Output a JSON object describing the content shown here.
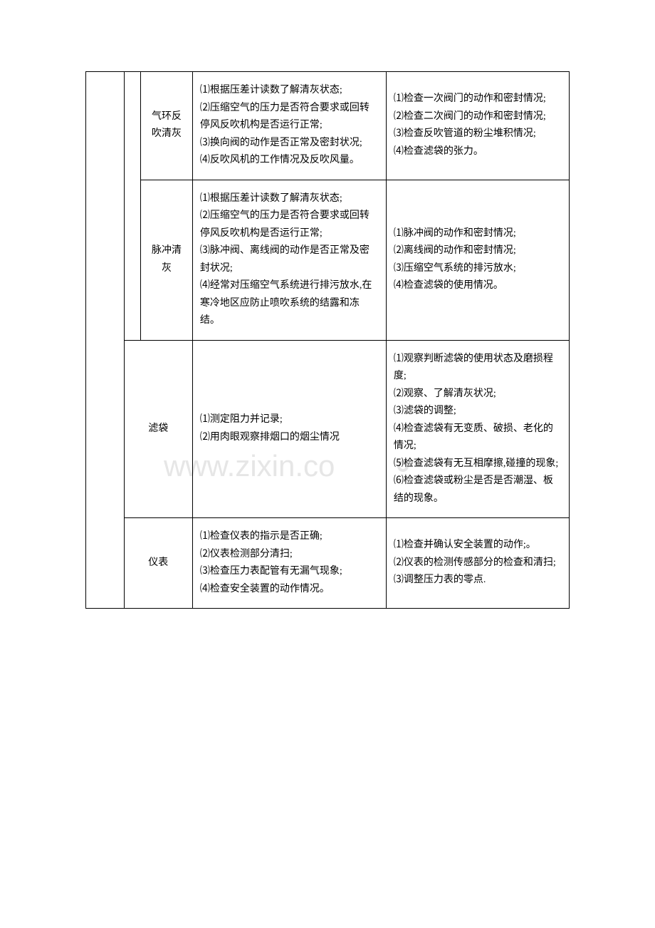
{
  "watermark": {
    "text": "www.zixin.com.cn",
    "fill_color": "#e6e6e6",
    "fontsize": 42
  },
  "table": {
    "border_color": "#000000",
    "text_color": "#000000",
    "fontsize": 14,
    "rows": [
      {
        "col2": "气环反吹清灰",
        "col3": "⑴根据压差计读数了解清灰状态;\n⑵压缩空气的压力是否符合要求或回转停风反吹机构是否运行正常;\n⑶换向阀的动作是否正常及密封状况;\n⑷反吹风机的工作情况及反吹风量。",
        "col4": "⑴检查一次阀门的动作和密封情况;\n⑵检查二次阀门的动作和密封情况;\n⑶检查反吹管道的粉尘堆积情况;\n⑷检查滤袋的张力。"
      },
      {
        "col2": "脉冲清灰",
        "col3": "⑴根据压差计读数了解清灰状态;\n⑵压缩空气的压力是否符合要求或回转停风反吹机构是否运行正常;\n⑶脉冲阀、离线阀的动作是否正常及密封状况;\n⑷经常对压缩空气系统进行排污放水,在寒冷地区应防止喷吹系统的结露和冻结。",
        "col4": "⑴脉冲阀的动作和密封情况;\n⑵离线阀的动作和密封情况;\n⑶压缩空气系统的排污放水;\n⑷检查滤袋的使用情况。"
      },
      {
        "col12": "滤袋",
        "col3": "⑴测定阻力并记录;\n⑵用肉眼观察排烟口的烟尘情况",
        "col4": "⑴观察判断滤袋的使用状态及磨损程度;\n⑵观察、了解清灰状况;\n⑶滤袋的调整;\n⑷检查滤袋有无变质、破损、老化的情况;\n⑸检查滤袋有无互相摩擦,碰撞的现象;\n⑹检查滤袋或粉尘是否是否潮湿、板结的现象。"
      },
      {
        "col12": "仪表",
        "col3": "⑴检查仪表的指示是否正确;\n⑵仪表检测部分清扫;\n⑶检查压力表配管有无漏气现象;\n⑷检查安全装置的动作情况。",
        "col4": "⑴检查并确认安全装置的动作;。\n⑵仪表的检测传感部分的检查和清扫;\n⑶调整压力表的零点."
      }
    ]
  }
}
